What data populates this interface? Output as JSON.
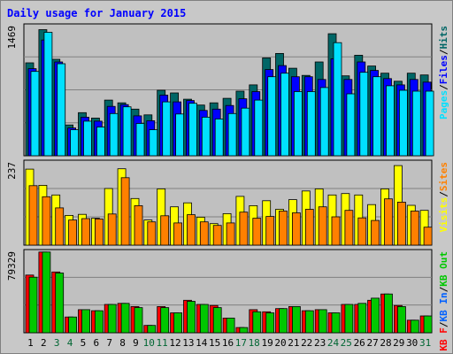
{
  "chart_data": {
    "type": "bar",
    "title": "Daily usage for January 2015",
    "categories": [
      "1",
      "2",
      "3",
      "4",
      "5",
      "6",
      "7",
      "8",
      "9",
      "10",
      "11",
      "12",
      "13",
      "14",
      "15",
      "16",
      "17",
      "18",
      "19",
      "20",
      "21",
      "22",
      "23",
      "24",
      "25",
      "26",
      "27",
      "28",
      "29",
      "30",
      "31"
    ],
    "weekend_days": [
      "3",
      "4",
      "10",
      "11",
      "17",
      "18",
      "24",
      "25",
      "31"
    ],
    "panels": [
      {
        "id": "hits-panel",
        "ymax_label": "1469",
        "ymax": 1469,
        "legend": [
          "Pages",
          "Files",
          "Hits"
        ],
        "series": [
          {
            "name": "Hits",
            "color": "#006666",
            "values": [
              1035,
              1405,
              1075,
              343,
              480,
              420,
              620,
              590,
              520,
              455,
              730,
              700,
              630,
              565,
              590,
              640,
              720,
              790,
              1090,
              1140,
              975,
              895,
              1045,
              1360,
              890,
              1120,
              1000,
              920,
              830,
              920,
              900
            ]
          },
          {
            "name": "Files",
            "color": "#0000ff",
            "values": [
              970,
              1290,
              1045,
              310,
              430,
              385,
              550,
              570,
              445,
              390,
              675,
              600,
              615,
              505,
              520,
              560,
              635,
              715,
              960,
              1005,
              880,
              880,
              850,
              1080,
              850,
              1045,
              950,
              860,
              790,
              850,
              820
            ]
          },
          {
            "name": "Pages",
            "color": "#00e0ff",
            "values": [
              940,
              1375,
              1025,
              290,
              385,
              320,
              470,
              545,
              360,
              290,
              600,
              465,
              585,
              430,
              410,
              470,
              530,
              620,
              880,
              920,
              715,
              715,
              760,
              1260,
              690,
              930,
              880,
              780,
              730,
              720,
              720
            ]
          }
        ]
      },
      {
        "id": "visits-panel",
        "ymax_label": "237",
        "ymax": 237,
        "legend": [
          "Visits",
          "Sites"
        ],
        "series": [
          {
            "name": "Visits",
            "color": "#ffff00",
            "values": [
              212,
              167,
              140,
              83,
              86,
              75,
              158,
              213,
              130,
              70,
              157,
              107,
              118,
              78,
              60,
              88,
              136,
              110,
              124,
              100,
              127,
              151,
              157,
              140,
              144,
              140,
              113,
              157,
              222,
              111,
              97
            ]
          },
          {
            "name": "Sites",
            "color": "#ff8000",
            "values": [
              166,
              135,
              104,
              70,
              74,
              73,
              87,
              188,
              110,
              65,
              82,
              62,
              85,
              65,
              55,
              62,
              92,
              75,
              80,
              95,
              90,
              100,
              107,
              79,
              97,
              76,
              69,
              129,
              120,
              95,
              50
            ]
          }
        ]
      },
      {
        "id": "kbytes-panel",
        "ymax_label": "79329",
        "ymax": 79329,
        "legend": [
          "KB F",
          "KB In",
          "KB Out"
        ],
        "series": [
          {
            "name": "KB F",
            "color": "#ff0000",
            "values": [
              55000,
              77000,
              58000,
              15000,
              22000,
              21000,
              27000,
              28000,
              25000,
              7000,
              25000,
              19000,
              31000,
              27000,
              26000,
              14000,
              5000,
              22000,
              20000,
              23000,
              25000,
              21000,
              22000,
              19000,
              27000,
              27000,
              31000,
              37000,
              26000,
              12000,
              16000
            ]
          },
          {
            "name": "KB Out",
            "color": "#00c800",
            "values": [
              53000,
              77000,
              57000,
              15000,
              22000,
              21000,
              27000,
              28000,
              24000,
              7000,
              24000,
              19000,
              30000,
              27000,
              24000,
              14000,
              5000,
              20000,
              19000,
              23000,
              25000,
              21000,
              22000,
              19000,
              27000,
              28000,
              33000,
              37000,
              25000,
              12000,
              16000
            ]
          }
        ]
      }
    ]
  },
  "colors": {
    "title": "#0000ff",
    "panel_bg": "#c0c0c0",
    "frame_bg": "#c8c8c8",
    "weekday_label": "#000000",
    "weekend_label": "#006633",
    "hits": "#006666",
    "files": "#0000ff",
    "pages": "#00e0ff",
    "visits": "#ffff00",
    "sites": "#ff8000",
    "kbytes": "#ff0000",
    "kbin": "#0060ff",
    "kbout": "#00c800"
  }
}
